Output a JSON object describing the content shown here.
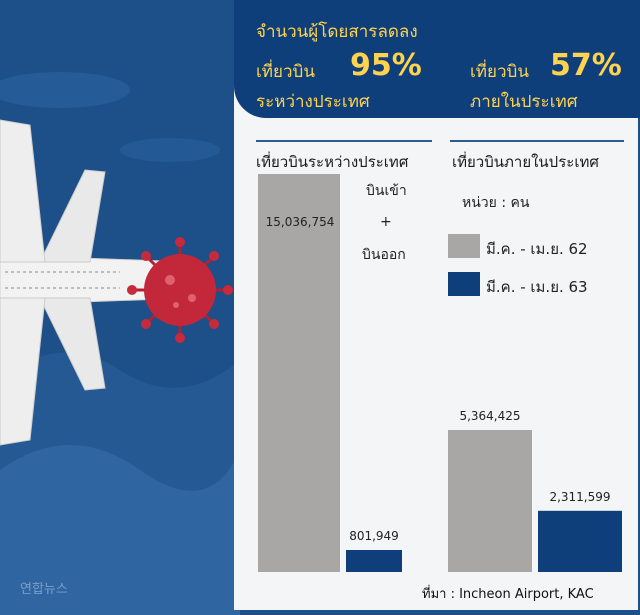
{
  "header": {
    "line1": "จำนวนผู้โดยสารลดลง",
    "intl_label": "เที่ยวบิน",
    "intl_pct": "95%",
    "intl_desc": "ระหว่างประเทศ",
    "dom_label": "เที่ยวบิน",
    "dom_pct": "57%",
    "dom_desc": "ภายในประเทศ"
  },
  "columns": {
    "intl_title": "เที่ยวบินระหว่างประเทศ",
    "dom_title": "เที่ยวบินภายในประเทศ"
  },
  "notes": {
    "inbound": "บินเข้า",
    "plus": "+",
    "outbound": "บินออก",
    "unit": "หน่วย : คน"
  },
  "legend": [
    {
      "label": "มี.ค. - เม.ย. 62",
      "color": "#a8a7a5"
    },
    {
      "label": "มี.ค. - เม.ย. 63",
      "color": "#0f3f7b"
    }
  ],
  "source": "ที่มา : Incheon Airport, KAC",
  "logo_text": "연합뉴스",
  "chart_data": {
    "type": "bar",
    "categories": [
      "เที่ยวบินระหว่างประเทศ",
      "เที่ยวบินภายในประเทศ"
    ],
    "series": [
      {
        "name": "มี.ค. - เม.ย. 62",
        "values": [
          15036754,
          5364425
        ],
        "labels": [
          "15,036,754",
          "5,364,425"
        ],
        "color": "#a8a7a5"
      },
      {
        "name": "มี.ค. - เม.ย. 63",
        "values": [
          801949,
          2311599
        ],
        "labels": [
          "801,949",
          "2,311,599"
        ],
        "color": "#0f3f7b"
      }
    ],
    "ylim": [
      0,
      16000000
    ]
  }
}
